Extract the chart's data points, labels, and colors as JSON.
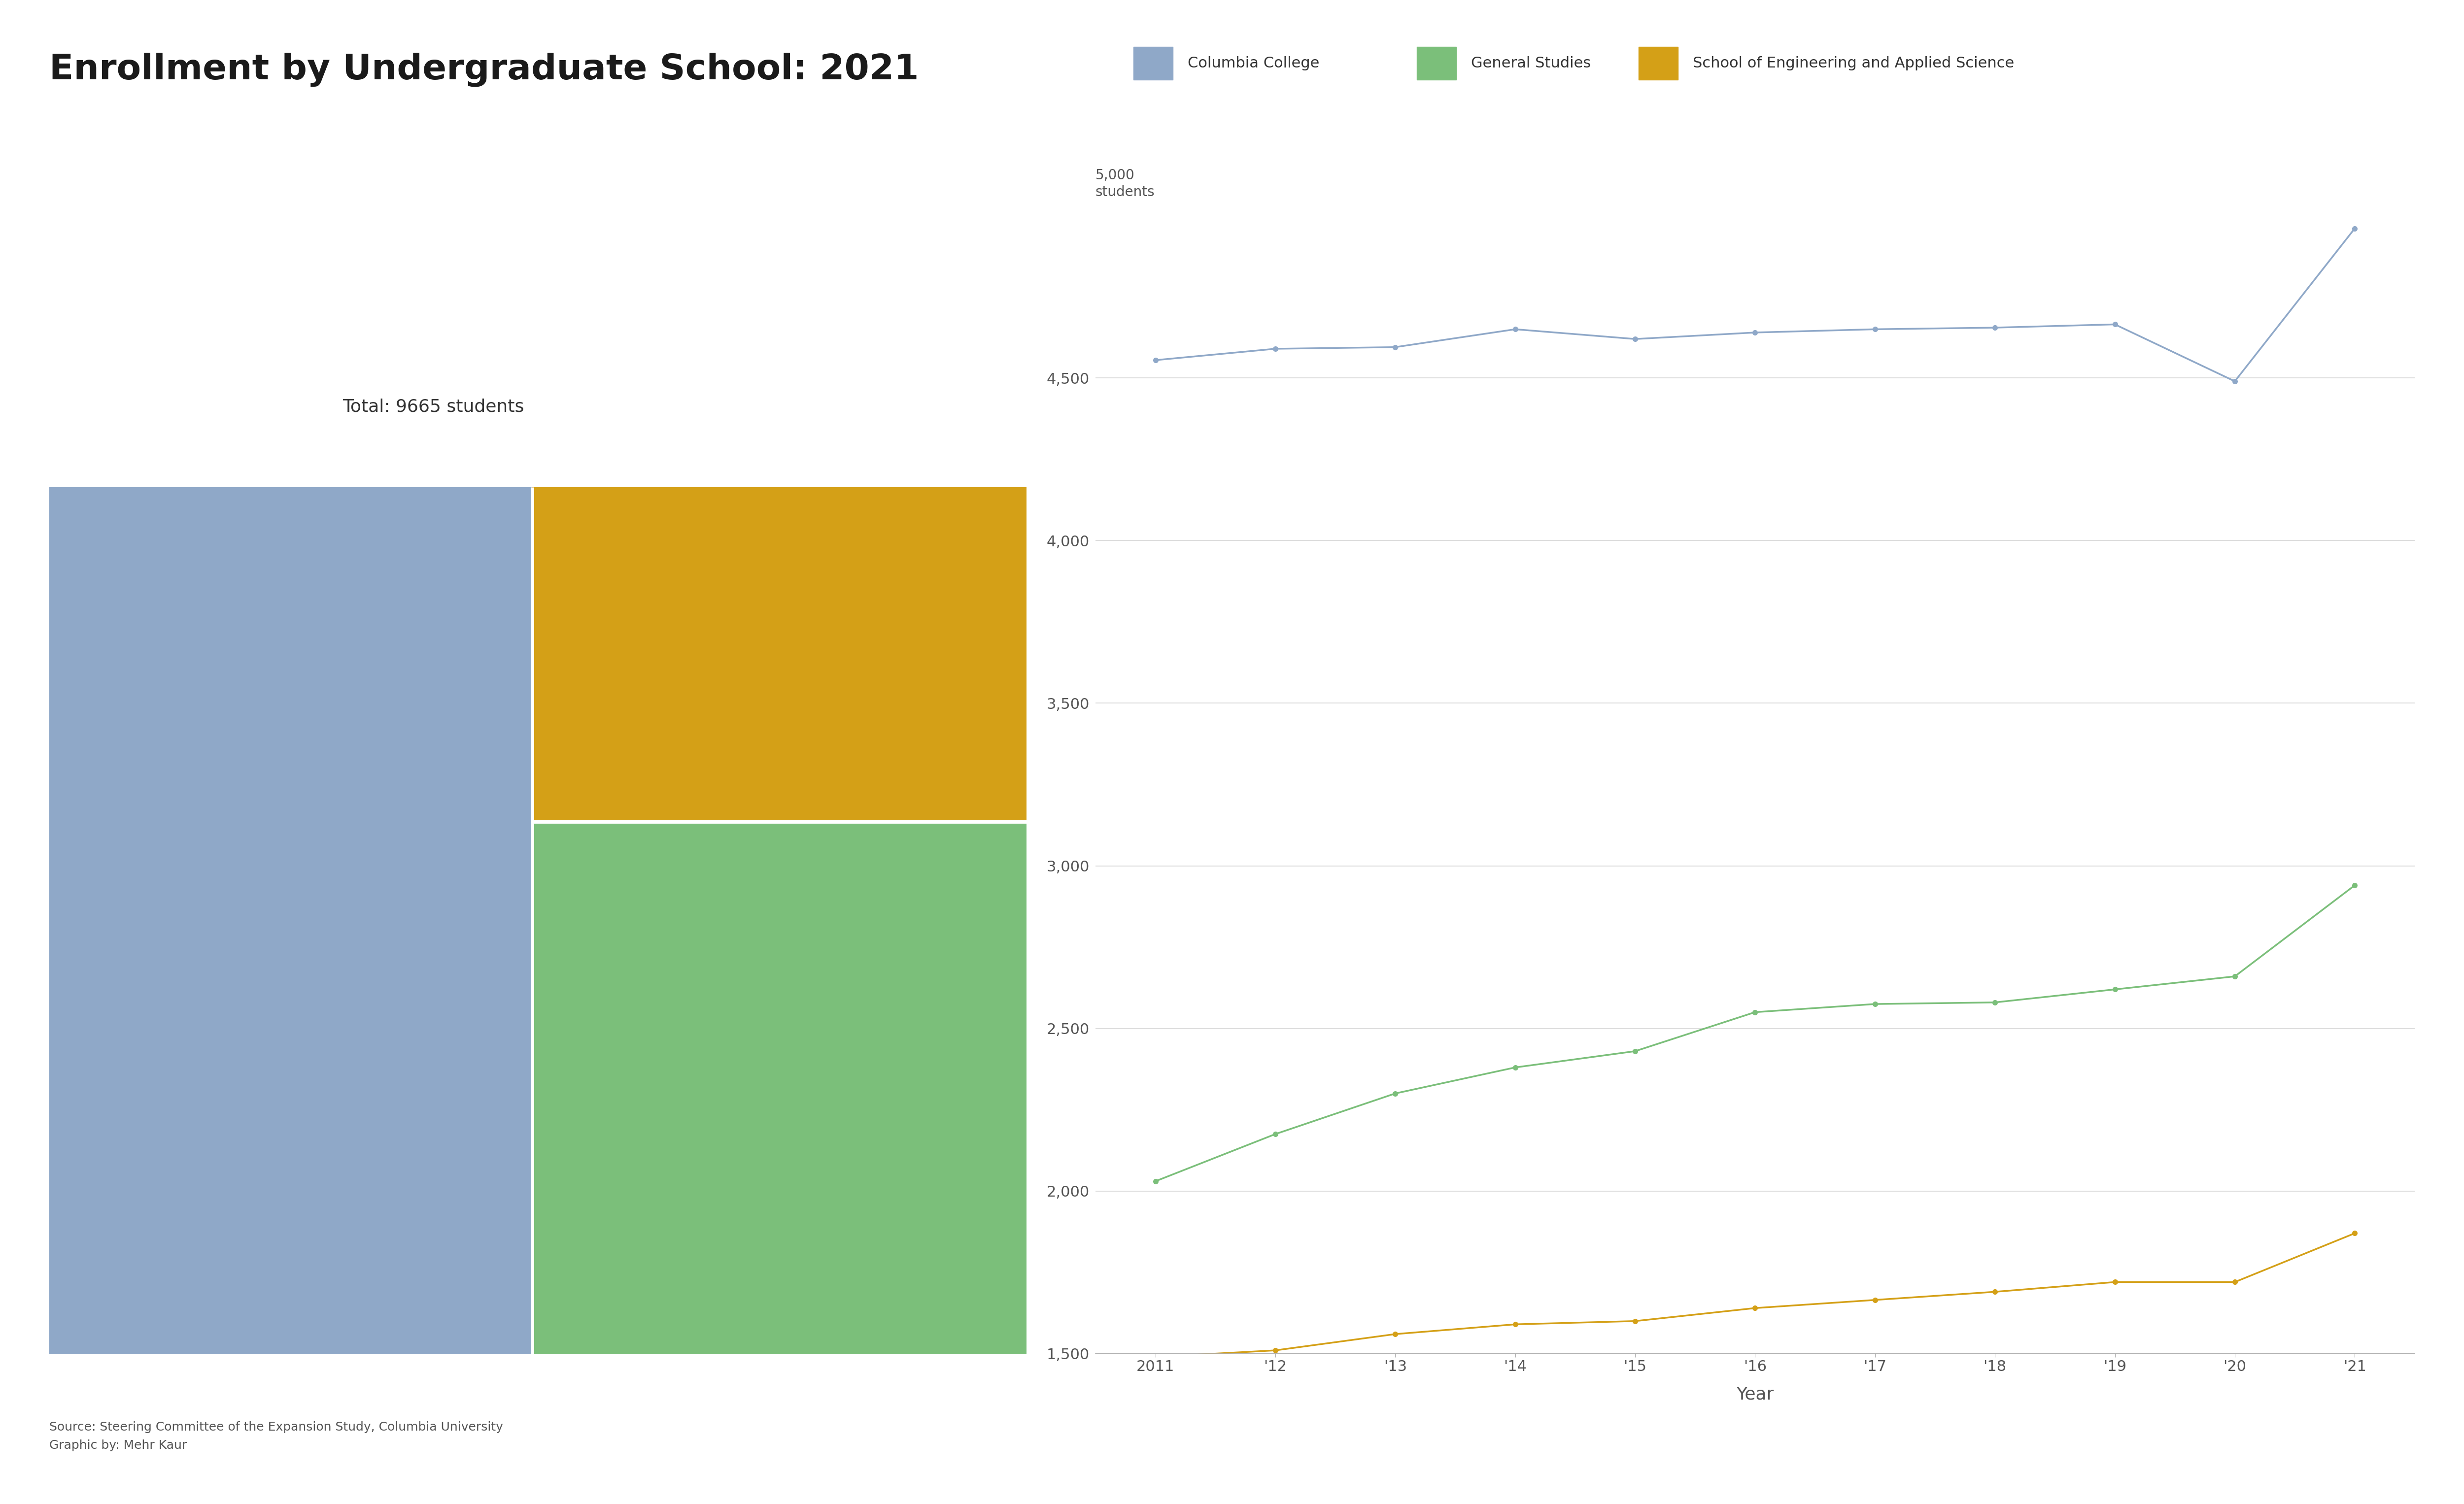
{
  "title": "Enrollment by Undergraduate School: 2021",
  "title_fontsize": 52,
  "background_color": "#ffffff",
  "legend_labels": [
    "Columbia College",
    "General Studies",
    "School of Engineering and Applied Science"
  ],
  "legend_colors": [
    "#8fa8c8",
    "#7bbf7a",
    "#d4a017"
  ],
  "waffle_total_label": "Total: 9665 students",
  "waffle_sections": [
    {
      "label": "Columbia College",
      "value": 4776,
      "color": "#8fa8c8"
    },
    {
      "label": "School of Engineering and Applied Science",
      "value": 1887,
      "color": "#d4a017"
    },
    {
      "label": "General Studies",
      "value": 3002,
      "color": "#7bbf7a"
    }
  ],
  "years": [
    2011,
    2012,
    2013,
    2014,
    2015,
    2016,
    2017,
    2018,
    2019,
    2020,
    2021
  ],
  "year_labels": [
    "2011",
    "'12",
    "'13",
    "'14",
    "'15",
    "'16",
    "'17",
    "'18",
    "'19",
    "'20",
    "'21"
  ],
  "columbia_college": [
    4555,
    4590,
    4595,
    4650,
    4620,
    4640,
    4650,
    4655,
    4665,
    4490,
    4960
  ],
  "general_studies": [
    2030,
    2175,
    2300,
    2380,
    2430,
    2550,
    2575,
    2580,
    2620,
    2660,
    2940
  ],
  "seas": [
    1490,
    1510,
    1560,
    1590,
    1600,
    1640,
    1665,
    1690,
    1720,
    1720,
    1870
  ],
  "line_colors": [
    "#8fa8c8",
    "#7bbf7a",
    "#d4a017"
  ],
  "ylim": [
    1500,
    5200
  ],
  "yticks": [
    1500,
    2000,
    2500,
    3000,
    3500,
    4000,
    4500
  ],
  "ytick_labels": [
    "1,500",
    "2,000",
    "2,500",
    "3,000",
    "3,500",
    "4,000",
    "4,500"
  ],
  "xlabel": "Year",
  "source_text": "Source: Steering Committee of the Expansion Study, Columbia University\nGraphic by: Mehr Kaur",
  "marker_size": 8
}
